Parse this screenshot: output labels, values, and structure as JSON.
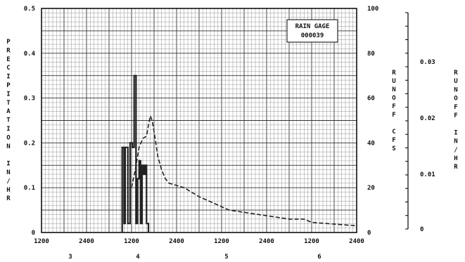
{
  "chart_data": {
    "type": "line",
    "title": "",
    "legend_box": {
      "line1": "RAIN GAGE",
      "line2": "000039"
    },
    "left_axis_label": "PRECIPITATION IN/HR",
    "right_axis_label": "RUNOFF CFS",
    "far_right_axis_label": "RUNOFF IN/HR",
    "x_ticks": [
      "1200",
      "2400",
      "1200",
      "2400",
      "1200",
      "2400",
      "1200",
      "2400"
    ],
    "x_day_labels": [
      "3",
      "4",
      "5",
      "6"
    ],
    "x_range_hours": [
      0,
      84
    ],
    "y_left_ticks": [
      "0",
      "0.1",
      "0.2",
      "0.3",
      "0.4",
      "0.5"
    ],
    "y_left_range": [
      0,
      0.5
    ],
    "y_right_ticks": [
      "0",
      "20",
      "40",
      "60",
      "80",
      "100"
    ],
    "y_right_range": [
      0,
      100
    ],
    "y_far_right_ticks": [
      "0",
      "0.01",
      "0.02",
      "0.03"
    ],
    "grid": true,
    "series": [
      {
        "name": "",
        "style": "step",
        "axis": "left",
        "x": [
          21.5,
          22.0,
          22.3,
          23.0,
          23.6,
          24.2,
          24.7,
          25.2,
          25.6,
          26.0,
          26.4,
          26.8,
          27.2,
          27.6,
          28.0,
          28.5
        ],
        "y": [
          0.19,
          0.02,
          0.19,
          0.02,
          0.2,
          0.19,
          0.35,
          0.02,
          0.12,
          0.16,
          0.02,
          0.15,
          0.13,
          0.15,
          0.02,
          0.0
        ]
      },
      {
        "name": "",
        "style": "dashed",
        "axis": "right",
        "x": [
          24.0,
          25.0,
          26.0,
          27.0,
          28.0,
          28.5,
          29.0,
          29.5,
          30.0,
          31.0,
          32.0,
          33.0,
          34.0,
          36.0,
          38.0,
          40.0,
          42.0,
          46.0,
          50.0,
          54.0,
          58.0,
          62.0,
          66.0,
          70.0,
          72.0,
          76.0,
          80.0,
          84.0
        ],
        "y": [
          20,
          28,
          38,
          42,
          43,
          48,
          52,
          50,
          45,
          34,
          28,
          24,
          22,
          21,
          20,
          18,
          16,
          13,
          10,
          9,
          8,
          7,
          6,
          6,
          4.5,
          4,
          3.5,
          3
        ]
      }
    ]
  }
}
